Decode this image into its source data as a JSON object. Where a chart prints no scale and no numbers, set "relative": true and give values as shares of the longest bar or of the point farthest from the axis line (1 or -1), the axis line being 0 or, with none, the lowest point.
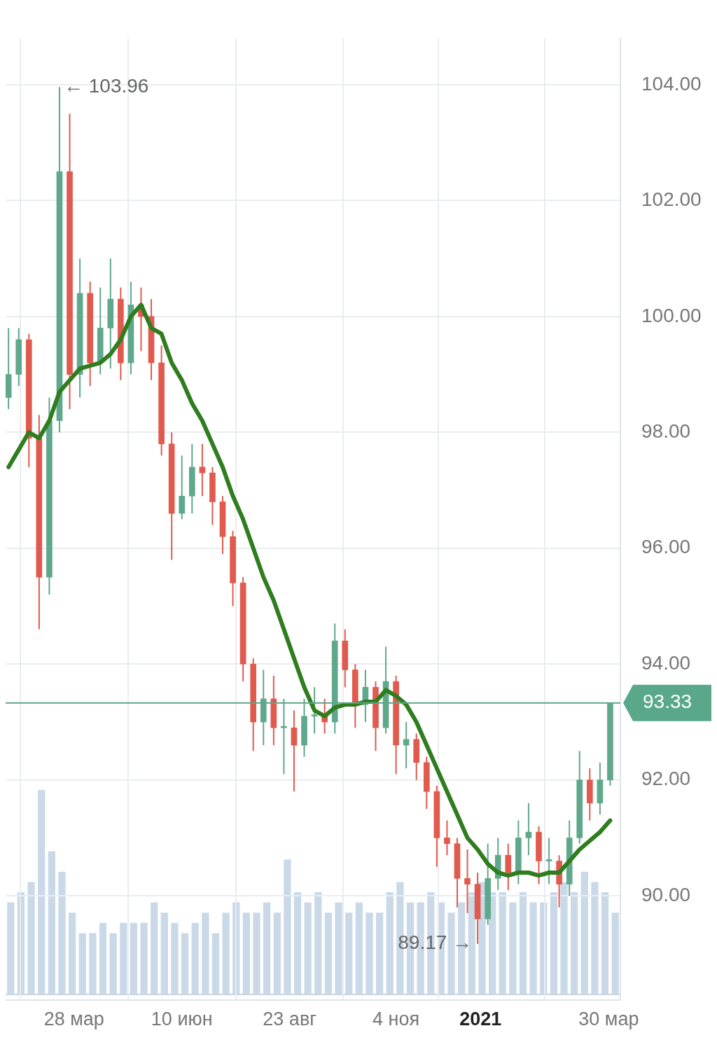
{
  "chart_data": [
    {
      "type": "candlestick",
      "x": [
        "2020-02-12",
        "2020-02-19",
        "2020-02-26",
        "2020-03-04",
        "2020-03-11",
        "2020-03-18",
        "2020-03-25",
        "2020-04-01",
        "2020-04-08",
        "2020-04-15",
        "2020-04-22",
        "2020-04-29",
        "2020-05-06",
        "2020-05-13",
        "2020-05-20",
        "2020-05-27",
        "2020-06-03",
        "2020-06-10",
        "2020-06-17",
        "2020-06-24",
        "2020-07-01",
        "2020-07-08",
        "2020-07-15",
        "2020-07-22",
        "2020-07-29",
        "2020-08-05",
        "2020-08-12",
        "2020-08-19",
        "2020-08-26",
        "2020-09-02",
        "2020-09-09",
        "2020-09-16",
        "2020-09-23",
        "2020-09-30",
        "2020-10-07",
        "2020-10-14",
        "2020-10-21",
        "2020-10-28",
        "2020-11-04",
        "2020-11-11",
        "2020-11-18",
        "2020-11-25",
        "2020-12-02",
        "2020-12-09",
        "2020-12-16",
        "2020-12-23",
        "2020-12-30",
        "2021-01-06",
        "2021-01-13",
        "2021-01-20",
        "2021-01-27",
        "2021-02-03",
        "2021-02-10",
        "2021-02-17",
        "2021-02-24",
        "2021-03-03",
        "2021-03-10",
        "2021-03-17",
        "2021-03-24",
        "2021-03-31"
      ],
      "ohlc": [
        [
          98.6,
          99.8,
          98.4,
          99.0
        ],
        [
          99.0,
          99.8,
          98.8,
          99.6
        ],
        [
          99.6,
          99.7,
          97.4,
          97.9
        ],
        [
          97.9,
          98.3,
          94.6,
          95.5
        ],
        [
          95.5,
          98.6,
          95.2,
          98.2
        ],
        [
          98.2,
          103.96,
          98.0,
          102.5
        ],
        [
          102.5,
          103.5,
          98.4,
          99.0
        ],
        [
          99.0,
          101.0,
          98.6,
          100.4
        ],
        [
          100.4,
          100.6,
          98.8,
          99.2
        ],
        [
          99.2,
          100.5,
          99.0,
          99.8
        ],
        [
          99.8,
          101.0,
          99.1,
          100.3
        ],
        [
          100.3,
          100.5,
          98.9,
          99.2
        ],
        [
          99.2,
          100.6,
          99.0,
          100.2
        ],
        [
          100.2,
          100.5,
          99.4,
          100.0
        ],
        [
          100.0,
          100.3,
          98.9,
          99.2
        ],
        [
          99.2,
          99.5,
          97.6,
          97.8
        ],
        [
          97.8,
          98.0,
          95.8,
          96.6
        ],
        [
          96.6,
          97.6,
          96.5,
          96.9
        ],
        [
          96.9,
          97.8,
          96.6,
          97.4
        ],
        [
          97.4,
          97.8,
          96.9,
          97.3
        ],
        [
          97.3,
          97.4,
          96.4,
          96.8
        ],
        [
          96.8,
          96.9,
          95.9,
          96.2
        ],
        [
          96.2,
          96.3,
          95.0,
          95.4
        ],
        [
          95.4,
          95.5,
          93.7,
          94.0
        ],
        [
          94.0,
          94.1,
          92.5,
          93.0
        ],
        [
          93.0,
          93.9,
          92.6,
          93.4
        ],
        [
          93.4,
          93.8,
          92.6,
          92.9
        ],
        [
          92.9,
          93.4,
          92.1,
          92.9
        ],
        [
          92.9,
          93.2,
          91.8,
          92.6
        ],
        [
          92.6,
          93.4,
          92.4,
          93.1
        ],
        [
          93.1,
          93.6,
          92.8,
          93.1
        ],
        [
          93.1,
          93.4,
          92.8,
          93.0
        ],
        [
          93.0,
          94.7,
          92.8,
          94.4
        ],
        [
          94.4,
          94.6,
          93.6,
          93.9
        ],
        [
          93.9,
          94.0,
          92.9,
          93.3
        ],
        [
          93.3,
          93.9,
          93.0,
          93.6
        ],
        [
          93.6,
          93.7,
          92.5,
          92.9
        ],
        [
          92.9,
          94.3,
          92.8,
          93.7
        ],
        [
          93.7,
          93.8,
          92.1,
          92.6
        ],
        [
          92.6,
          93.0,
          92.2,
          92.7
        ],
        [
          92.7,
          92.8,
          92.0,
          92.3
        ],
        [
          92.3,
          92.4,
          91.5,
          91.8
        ],
        [
          91.8,
          91.9,
          90.5,
          91.0
        ],
        [
          91.0,
          91.3,
          90.7,
          90.9
        ],
        [
          90.9,
          91.0,
          89.8,
          90.3
        ],
        [
          90.3,
          90.8,
          89.7,
          90.2
        ],
        [
          90.2,
          90.4,
          89.17,
          89.6
        ],
        [
          89.6,
          90.9,
          89.5,
          90.3
        ],
        [
          90.3,
          91.0,
          90.1,
          90.7
        ],
        [
          90.7,
          90.9,
          90.1,
          90.4
        ],
        [
          90.4,
          91.3,
          90.2,
          91.0
        ],
        [
          91.0,
          91.6,
          90.7,
          91.1
        ],
        [
          91.1,
          91.2,
          90.2,
          90.6
        ],
        [
          90.6,
          91.0,
          90.2,
          90.6
        ],
        [
          90.6,
          90.7,
          89.8,
          90.2
        ],
        [
          90.2,
          91.3,
          90.0,
          91.0
        ],
        [
          91.0,
          92.5,
          90.9,
          92.0
        ],
        [
          92.0,
          92.2,
          91.3,
          91.6
        ],
        [
          91.6,
          92.3,
          91.4,
          92.0
        ],
        [
          92.0,
          93.33,
          91.9,
          93.33
        ]
      ],
      "series": [
        {
          "type": "line",
          "color": "#2f7d1f",
          "values": [
            97.4,
            97.7,
            98.0,
            97.9,
            98.2,
            98.7,
            98.9,
            99.1,
            99.15,
            99.2,
            99.35,
            99.6,
            100.0,
            100.2,
            99.8,
            99.7,
            99.2,
            98.9,
            98.5,
            98.2,
            97.8,
            97.4,
            96.9,
            96.5,
            96.0,
            95.5,
            95.1,
            94.6,
            94.1,
            93.6,
            93.2,
            93.1,
            93.25,
            93.3,
            93.3,
            93.35,
            93.35,
            93.55,
            93.45,
            93.3,
            93.0,
            92.6,
            92.2,
            91.8,
            91.4,
            91.0,
            90.8,
            90.55,
            90.4,
            90.35,
            90.4,
            90.4,
            90.35,
            90.4,
            90.4,
            90.6,
            90.8,
            90.95,
            91.1,
            91.3
          ]
        }
      ],
      "xlim": [
        "2020-02-10",
        "2021-04-07"
      ],
      "xticks": [
        {
          "value": "2020-03-28",
          "label": "28 мар"
        },
        {
          "value": "2020-06-10",
          "label": "10 июн"
        },
        {
          "value": "2020-08-23",
          "label": "23 авг"
        },
        {
          "value": "2020-11-04",
          "label": "4 ноя"
        },
        {
          "value": "2021-01-01",
          "label": "2021"
        },
        {
          "value": "2021-03-30",
          "label": "30 мар"
        }
      ],
      "ylim": [
        88.2,
        104.8
      ],
      "yticks": [
        {
          "value": 90,
          "label": "90.00"
        },
        {
          "value": 92,
          "label": "92.00"
        },
        {
          "value": 94,
          "label": "94.00"
        },
        {
          "value": 96,
          "label": "96.00"
        },
        {
          "value": 98,
          "label": "98.00"
        },
        {
          "value": 100,
          "label": "100.00"
        },
        {
          "value": 102,
          "label": "102.00"
        },
        {
          "value": 104,
          "label": "104.00"
        }
      ],
      "grid": true,
      "ref_lines": [
        {
          "axis": "y",
          "value": 93.33,
          "label": "93.33",
          "color": "#5aa88a"
        }
      ],
      "annotations": [
        {
          "text": "← 103.96",
          "x": "2020-03-18",
          "y": 103.96
        },
        {
          "text": "89.17 →",
          "x": "2020-12-30",
          "y": 89.17
        }
      ]
    },
    {
      "type": "bar",
      "relative": true,
      "color": "#c9d9e8",
      "categories": [
        null,
        null,
        null,
        null,
        null,
        null,
        null,
        null,
        null,
        null,
        null,
        null,
        null,
        null,
        null,
        null,
        null,
        null,
        null,
        null,
        null,
        null,
        null,
        null,
        null,
        null,
        null,
        null,
        null,
        null,
        null,
        null,
        null,
        null,
        null,
        null,
        null,
        null,
        null,
        null,
        null,
        null,
        null,
        null,
        null,
        null,
        null,
        null,
        null,
        null,
        null,
        null,
        null,
        null,
        null,
        null,
        null,
        null,
        null,
        null
      ],
      "values": [
        0.45,
        0.5,
        0.55,
        1,
        0.7,
        0.6,
        0.4,
        0.3,
        0.3,
        0.35,
        0.3,
        0.35,
        0.35,
        0.35,
        0.45,
        0.4,
        0.35,
        0.3,
        0.35,
        0.4,
        0.3,
        0.4,
        0.45,
        0.4,
        0.4,
        0.45,
        0.4,
        0.66,
        0.5,
        0.45,
        0.5,
        0.4,
        0.45,
        0.4,
        0.45,
        0.4,
        0.4,
        0.5,
        0.55,
        0.45,
        0.45,
        0.5,
        0.45,
        0.4,
        0.45,
        0.5,
        0.55,
        0.5,
        0.5,
        0.45,
        0.5,
        0.45,
        0.45,
        0.5,
        0.55,
        0.5,
        0.6,
        0.55,
        0.5,
        0.4
      ]
    }
  ]
}
